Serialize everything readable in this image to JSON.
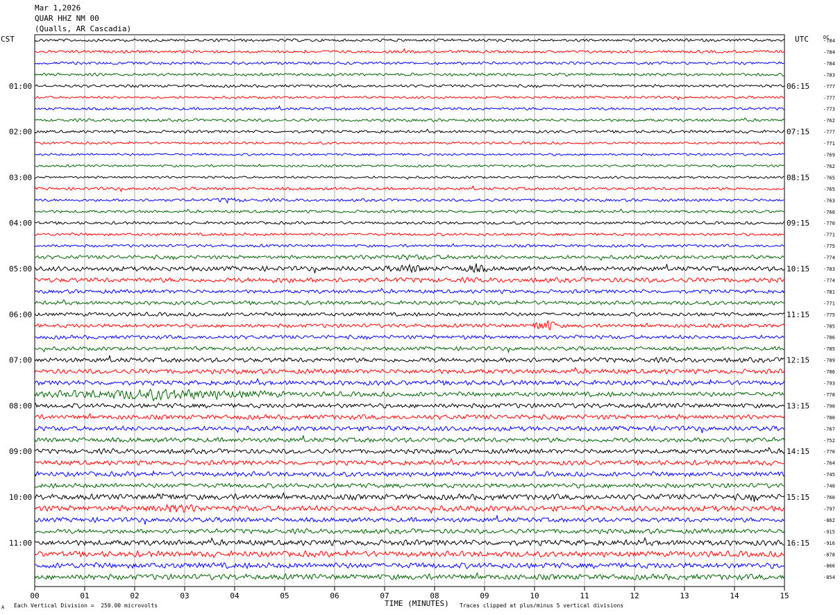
{
  "header": {
    "date": "Mar 1,2026",
    "station": "QUAR HHZ NM 00",
    "location": "(Qualls, AR Cascadia)"
  },
  "left_axis_title": "CST",
  "right_axis_title": "UTC",
  "dc_header": "DC",
  "footer": {
    "left": "Each Vertical Division =  250.00 microvolts",
    "right": "Traces clipped at plus/minus 5 vertical divisions",
    "mark": "A"
  },
  "chart_data": {
    "type": "line",
    "title": "",
    "xlabel": "TIME (MINUTES)",
    "xlim": [
      0,
      15
    ],
    "x_ticks": [
      "00",
      "01",
      "02",
      "03",
      "04",
      "05",
      "06",
      "07",
      "08",
      "09",
      "10",
      "11",
      "12",
      "13",
      "14",
      "15"
    ],
    "rows_per_hour": 4,
    "trace_colors": [
      "#000000",
      "#ff0000",
      "#0000ff",
      "#006400"
    ],
    "left_hour_labels": [
      "01:00",
      "02:00",
      "03:00",
      "04:00",
      "05:00",
      "06:00",
      "07:00",
      "08:00",
      "09:00",
      "10:00",
      "11:00"
    ],
    "right_hour_labels": [
      "06:15",
      "07:15",
      "08:15",
      "09:15",
      "10:15",
      "11:15",
      "12:15",
      "13:15",
      "14:15",
      "15:15",
      "16:15"
    ],
    "dc_offsets": [
      "-784",
      "-784",
      "-784",
      "-783",
      "-777",
      "-777",
      "-773",
      "-762",
      "-777",
      "-771",
      "-769",
      "-762",
      "-765",
      "-765",
      "-763",
      "-760",
      "-770",
      "-771",
      "-775",
      "-774",
      "-783",
      "-774",
      "-781",
      "-771",
      "-775",
      "-785",
      "-786",
      "-785",
      "-789",
      "-786",
      "-793",
      "-778",
      "-790",
      "-780",
      "-767",
      "-752",
      "-770",
      "-764",
      "-745",
      "-740",
      "-760",
      "-797",
      "-862",
      "-915",
      "-916",
      "-878",
      "-866",
      "-854"
    ],
    "trace_amplitude": [
      3,
      3,
      3,
      3,
      3,
      2.5,
      3,
      3,
      3,
      2.5,
      2.5,
      2.5,
      2.5,
      3,
      3,
      3,
      3,
      3,
      3,
      4,
      5,
      5,
      4,
      4,
      4,
      4,
      4,
      4,
      5,
      5,
      5,
      5,
      5,
      5,
      5,
      5,
      5,
      5,
      5,
      5,
      6,
      6,
      5,
      5,
      6,
      6,
      6,
      6
    ],
    "events": [
      {
        "row": 14,
        "start_min": 3.6,
        "end_min": 4.2,
        "amplitude": 7
      },
      {
        "row": 19,
        "start_min": 5.0,
        "end_min": 9.8,
        "amplitude": 6
      },
      {
        "row": 20,
        "start_min": 7.0,
        "end_min": 8.0,
        "amplitude": 10
      },
      {
        "row": 20,
        "start_min": 8.5,
        "end_min": 9.1,
        "amplitude": 12
      },
      {
        "row": 21,
        "start_min": 4.0,
        "end_min": 5.8,
        "amplitude": 7
      },
      {
        "row": 21,
        "start_min": 7.1,
        "end_min": 7.4,
        "amplitude": 7
      },
      {
        "row": 25,
        "start_min": 9.95,
        "end_min": 10.45,
        "amplitude": 16
      },
      {
        "row": 26,
        "start_min": 8.5,
        "end_min": 8.8,
        "amplitude": 7
      },
      {
        "row": 26,
        "start_min": 10.7,
        "end_min": 11.0,
        "amplitude": 7
      },
      {
        "row": 31,
        "start_min": 0.0,
        "end_min": 5.0,
        "amplitude": 13
      },
      {
        "row": 40,
        "start_min": 2.0,
        "end_min": 3.2,
        "amplitude": 9
      },
      {
        "row": 40,
        "start_min": 14.2,
        "end_min": 14.6,
        "amplitude": 9
      },
      {
        "row": 41,
        "start_min": 2.0,
        "end_min": 3.6,
        "amplitude": 11
      }
    ]
  }
}
